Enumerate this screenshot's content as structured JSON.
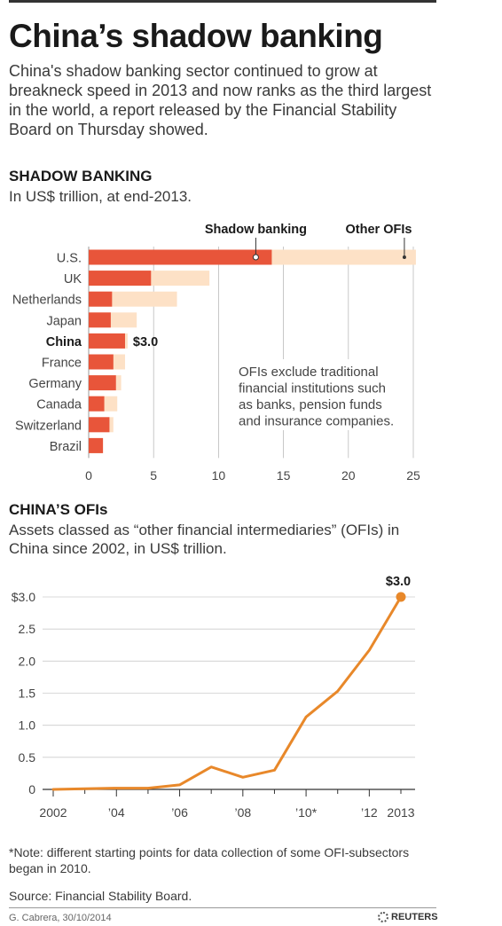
{
  "header": {
    "title": "China’s shadow banking",
    "intro": "China's shadow banking sector continued to grow at breakneck speed in 2013 and now ranks as the third largest in the world, a report released by the Financial Stability Board on Thursday showed."
  },
  "section1": {
    "title": "SHADOW BANKING",
    "subtitle": "In US$ trillion, at end-2013."
  },
  "section2": {
    "title": "CHINA’S OFIs",
    "subtitle": "Assets classed as “other financial intermediaries” (OFIs) in China since 2002, in US$ trillion."
  },
  "footer": {
    "note": "*Note: different starting points for data collection of some OFI-subsectors began in 2010.",
    "source": "Source: Financial Stability Board.",
    "credit": "G. Cabrera, 30/10/2014",
    "brand": "REUTERS"
  },
  "chart_data": [
    {
      "type": "bar",
      "orientation": "horizontal",
      "stacked": false,
      "categories": [
        "U.S.",
        "UK",
        "Netherlands",
        "Japan",
        "China",
        "France",
        "Germany",
        "Canada",
        "Switzerland",
        "Brazil"
      ],
      "highlight_category": "China",
      "series": [
        {
          "name": "Shadow banking",
          "color": "#e8553a",
          "values": [
            14.1,
            4.8,
            1.8,
            1.7,
            2.8,
            1.9,
            2.1,
            1.2,
            1.6,
            1.1
          ]
        },
        {
          "name": "Other OFIs",
          "color": "#fde1c6",
          "values": [
            25.2,
            9.3,
            6.8,
            3.7,
            3.0,
            2.8,
            2.5,
            2.2,
            1.9,
            1.1
          ]
        }
      ],
      "value_label": {
        "category": "China",
        "text": "$3.0"
      },
      "annotation": "OFIs exclude traditional financial institutions such as banks, pension funds and insurance companies.",
      "xticks": [
        "0",
        "5",
        "10",
        "15",
        "20",
        "25"
      ],
      "xlim": [
        0,
        25
      ],
      "grid": true,
      "legend": "top"
    },
    {
      "type": "line",
      "color": "#e8882a",
      "x": [
        2002,
        2003,
        2004,
        2005,
        2006,
        2007,
        2008,
        2009,
        2010,
        2011,
        2012,
        2013
      ],
      "values": [
        0.0,
        0.01,
        0.02,
        0.02,
        0.07,
        0.35,
        0.19,
        0.3,
        1.13,
        1.53,
        2.17,
        3.0
      ],
      "xticks": [
        "2002",
        "’04",
        "’06",
        "’08",
        "’10*",
        "’12",
        "2013"
      ],
      "yticks": [
        "0",
        "0.5",
        "1.0",
        "1.5",
        "2.0",
        "2.5",
        "$3.0"
      ],
      "ylim": [
        0,
        3.0
      ],
      "end_label": "$3.0",
      "grid": true
    }
  ]
}
